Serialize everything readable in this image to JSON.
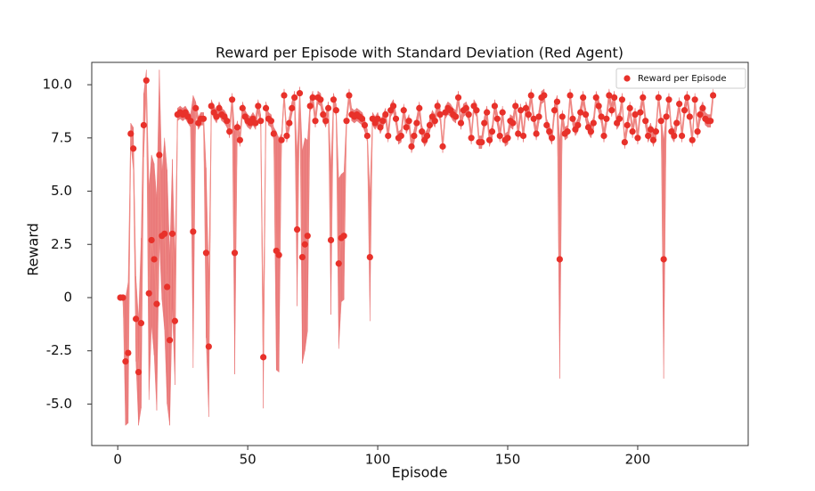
{
  "chart_data": {
    "type": "scatter",
    "title": "Reward per Episode with Standard Deviation (Red Agent)",
    "xlabel": "Episode",
    "ylabel": "Reward",
    "legend": "upper right",
    "xlim": [
      -10,
      242.5
    ],
    "ylim": [
      -6.95,
      11.05
    ],
    "xticks": [
      0,
      50,
      100,
      150,
      200
    ],
    "yticks": [
      {
        "value": 10,
        "label": "10.0"
      },
      7.5,
      {
        "value": 5,
        "label": "5.0"
      },
      2.5,
      0,
      -2.5,
      {
        "value": -5,
        "label": "-5.0"
      }
    ],
    "series": [
      {
        "name": "Reward per Episode",
        "color": "#e8312a",
        "band_color": "#e86a6a",
        "line_color": "#f08a84",
        "x": [
          1,
          2,
          3,
          4,
          5,
          6,
          7,
          8,
          9,
          10,
          11,
          12,
          13,
          14,
          15,
          16,
          17,
          18,
          19,
          20,
          21,
          22,
          23,
          24,
          25,
          26,
          27,
          28,
          29,
          30,
          31,
          32,
          33,
          34,
          35,
          36,
          37,
          38,
          39,
          40,
          41,
          42,
          43,
          44,
          45,
          46,
          47,
          48,
          49,
          50,
          51,
          52,
          53,
          54,
          55,
          56,
          57,
          58,
          59,
          60,
          61,
          62,
          63,
          64,
          65,
          66,
          67,
          68,
          69,
          70,
          71,
          72,
          73,
          74,
          75,
          76,
          77,
          78,
          79,
          80,
          81,
          82,
          83,
          84,
          85,
          86,
          87,
          88,
          89,
          90,
          91,
          92,
          93,
          94,
          95,
          96,
          97,
          98,
          99,
          100,
          101,
          102,
          103,
          104,
          105,
          106,
          107,
          108,
          109,
          110,
          111,
          112,
          113,
          114,
          115,
          116,
          117,
          118,
          119,
          120,
          121,
          122,
          123,
          124,
          125,
          126,
          127,
          128,
          129,
          130,
          131,
          132,
          133,
          134,
          135,
          136,
          137,
          138,
          139,
          140,
          141,
          142,
          143,
          144,
          145,
          146,
          147,
          148,
          149,
          150,
          151,
          152,
          153,
          154,
          155,
          156,
          157,
          158,
          159,
          160,
          161,
          162,
          163,
          164,
          165,
          166,
          167,
          168,
          169,
          170,
          171,
          172,
          173,
          174,
          175,
          176,
          177,
          178,
          179,
          180,
          181,
          182,
          183,
          184,
          185,
          186,
          187,
          188,
          189,
          190,
          191,
          192,
          193,
          194,
          195,
          196,
          197,
          198,
          199,
          200,
          201,
          202,
          203,
          204,
          205,
          206,
          207,
          208,
          209,
          210,
          211,
          212,
          213,
          214,
          215,
          216,
          217,
          218,
          219,
          220,
          221,
          222,
          223,
          224,
          225,
          226,
          227,
          228,
          229
        ],
        "values": [
          0,
          0,
          -3.0,
          -2.6,
          7.7,
          7.0,
          -1.0,
          -3.5,
          -1.2,
          8.1,
          10.2,
          0.2,
          2.7,
          1.8,
          -0.3,
          6.7,
          2.9,
          3.0,
          0.5,
          -2.0,
          3.0,
          -1.1,
          8.6,
          8.7,
          8.6,
          8.7,
          8.5,
          8.3,
          3.1,
          8.9,
          8.2,
          8.4,
          8.4,
          2.1,
          -2.3,
          9.0,
          8.7,
          8.5,
          8.9,
          8.6,
          8.5,
          8.3,
          7.8,
          9.3,
          2.1,
          8.0,
          7.4,
          8.9,
          8.5,
          8.3,
          8.2,
          8.4,
          8.2,
          9.0,
          8.3,
          -2.8,
          8.9,
          8.4,
          8.3,
          7.7,
          2.2,
          2.0,
          7.4,
          9.5,
          7.6,
          8.2,
          8.9,
          9.4,
          3.2,
          9.6,
          1.9,
          2.5,
          2.9,
          9.0,
          9.4,
          8.3,
          9.4,
          9.3,
          8.6,
          8.3,
          8.9,
          2.7,
          9.3,
          8.8,
          1.6,
          2.8,
          2.9,
          8.3,
          9.5,
          8.6,
          8.5,
          8.6,
          8.5,
          8.4,
          8.1,
          7.6,
          1.9,
          8.4,
          8.2,
          8.4,
          8.0,
          8.3,
          8.6,
          7.6,
          8.8,
          9.0,
          8.4,
          7.5,
          7.6,
          8.8,
          8.0,
          8.3,
          7.1,
          7.6,
          8.2,
          8.9,
          7.8,
          7.4,
          7.6,
          8.1,
          8.5,
          8.3,
          9.0,
          8.6,
          7.1,
          8.7,
          8.9,
          8.8,
          8.6,
          8.5,
          9.4,
          8.2,
          8.8,
          8.9,
          8.6,
          7.5,
          9.0,
          8.8,
          7.3,
          7.3,
          8.2,
          8.7,
          7.4,
          7.8,
          9.0,
          8.4,
          7.6,
          8.7,
          7.4,
          7.5,
          8.3,
          8.2,
          9.0,
          7.7,
          8.8,
          7.6,
          8.9,
          8.6,
          9.5,
          8.4,
          7.7,
          8.5,
          9.4,
          9.5,
          8.1,
          7.8,
          7.5,
          8.8,
          9.2,
          1.8,
          8.5,
          7.7,
          7.8,
          9.5,
          8.4,
          7.9,
          8.1,
          8.7,
          9.4,
          8.6,
          8.0,
          7.8,
          8.2,
          9.4,
          9.0,
          8.5,
          7.6,
          8.4,
          9.5,
          8.8,
          9.4,
          8.2,
          8.4,
          9.3,
          7.3,
          8.1,
          8.9,
          7.8,
          8.6,
          7.5,
          8.7,
          9.4,
          8.3,
          7.6,
          7.9,
          7.4,
          7.8,
          9.4,
          8.3,
          1.8,
          8.5,
          9.3,
          7.8,
          7.6,
          8.2,
          9.1,
          7.6,
          8.8,
          9.4,
          8.5,
          7.4,
          9.3,
          7.8,
          8.6,
          8.9,
          8.4,
          8.3,
          8.3,
          9.5
        ],
        "std": [
          0,
          0,
          3.0,
          3.3,
          0.5,
          1.0,
          2.0,
          2.5,
          4.0,
          1.5,
          0.5,
          5.0,
          4.0,
          4.5,
          5.0,
          4.0,
          3.0,
          4.5,
          5.5,
          4.0,
          3.5,
          3.0,
          0.3,
          0.3,
          0.3,
          0.3,
          0.3,
          0.3,
          6.4,
          0.3,
          0.3,
          0.3,
          0.3,
          4.0,
          3.3,
          0.3,
          0.3,
          0.3,
          0.3,
          0.3,
          0.3,
          0.3,
          0.3,
          0.3,
          5.7,
          0.3,
          0.3,
          0.3,
          0.3,
          0.3,
          0.3,
          0.3,
          0.3,
          0.3,
          0.3,
          2.4,
          0.3,
          0.3,
          0.3,
          0.3,
          5.6,
          5.5,
          0.3,
          0.3,
          0.3,
          0.3,
          0.3,
          0.3,
          3.6,
          0.3,
          5.0,
          5.0,
          4.5,
          0.3,
          0.3,
          0.3,
          0.3,
          0.3,
          0.3,
          0.3,
          0.3,
          3.5,
          0.3,
          0.3,
          4.0,
          3.0,
          3.0,
          0.3,
          0.3,
          0.3,
          0.3,
          0.3,
          0.3,
          0.3,
          0.3,
          0.3,
          3.0,
          0.3,
          0.3,
          0.3,
          0.3,
          0.3,
          0.3,
          0.3,
          0.3,
          0.3,
          0.3,
          0.3,
          0.3,
          0.3,
          0.3,
          0.3,
          0.3,
          0.3,
          0.3,
          0.3,
          0.3,
          0.3,
          0.3,
          0.3,
          0.3,
          0.3,
          0.3,
          0.3,
          0.3,
          0.3,
          0.3,
          0.3,
          0.3,
          0.3,
          0.3,
          0.3,
          0.3,
          0.3,
          0.3,
          0.3,
          0.3,
          0.3,
          0.3,
          0.3,
          0.3,
          0.3,
          0.3,
          0.3,
          0.3,
          0.3,
          0.3,
          0.3,
          0.3,
          0.3,
          0.3,
          0.3,
          0.3,
          0.3,
          0.3,
          0.3,
          0.3,
          0.3,
          0.3,
          0.3,
          0.3,
          0.3,
          0.3,
          0.3,
          0.3,
          0.3,
          0.3,
          0.3,
          0.3,
          5.6,
          0.3,
          0.3,
          0.3,
          0.3,
          0.3,
          0.3,
          0.3,
          0.3,
          0.3,
          0.3,
          0.3,
          0.3,
          0.3,
          0.3,
          0.3,
          0.3,
          0.3,
          0.3,
          0.3,
          0.3,
          0.3,
          0.3,
          0.3,
          0.3,
          0.3,
          0.3,
          0.3,
          0.3,
          0.3,
          0.3,
          0.3,
          0.3,
          0.3,
          0.3,
          0.3,
          0.3,
          0.3,
          0.3,
          0.3,
          5.6,
          0.3,
          0.3,
          0.3,
          0.3,
          0.3,
          0.3,
          0.3,
          0.3,
          0.3,
          0.3,
          0.3,
          0.3,
          0.3,
          0.3,
          0.3,
          0.3,
          0.3,
          0.3,
          0.3
        ]
      }
    ]
  }
}
